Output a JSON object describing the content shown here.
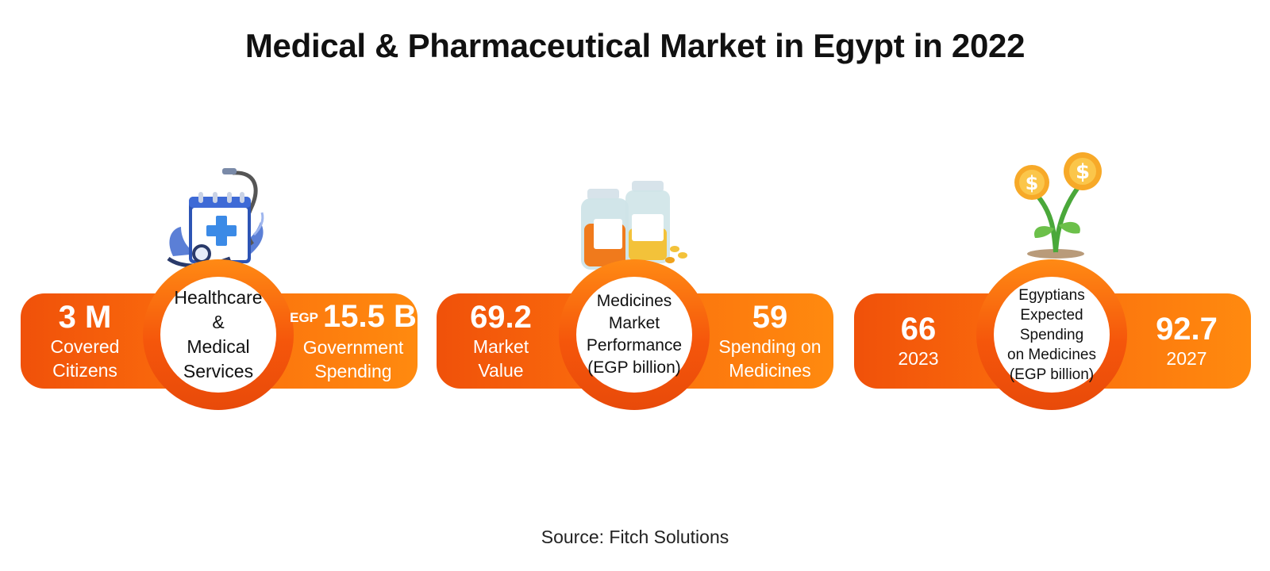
{
  "title": "Medical & Pharmaceutical Market in Egypt in 2022",
  "source": "Source: Fitch Solutions",
  "cards": [
    {
      "center": "Healthcare\n&\nMedical\nServices",
      "left_value": "3 M",
      "left_label": "Covered\nCitizens",
      "right_unit": "EGP",
      "right_value": "15.5 B",
      "right_label": "Government\nSpending",
      "icon": "calendar-stethoscope-icon"
    },
    {
      "center": "Medicines\nMarket\nPerformance\n(EGP billion)",
      "left_value": "69.2",
      "left_label": "Market\nValue",
      "right_value": "59",
      "right_label": "Spending on\nMedicines",
      "icon": "medicine-bottles-icon"
    },
    {
      "center": "Egyptians\nExpected\nSpending\non Medicines\n(EGP billion)",
      "left_value": "66",
      "left_label": "2023",
      "right_value": "92.7",
      "right_label": "2027",
      "icon": "money-plant-icon"
    }
  ],
  "colors": {
    "accent": "#f5560b",
    "accent_light": "#ff8a0f",
    "text": "#111111"
  }
}
